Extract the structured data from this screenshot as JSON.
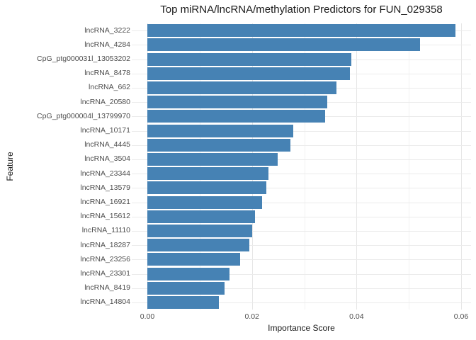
{
  "title": "Top miRNA/lncRNA/methylation Predictors for FUN_029358",
  "chart_data": {
    "type": "bar",
    "orientation": "horizontal",
    "title": "Top miRNA/lncRNA/methylation Predictors for FUN_029358",
    "xlabel": "Importance Score",
    "ylabel": "Feature",
    "xlim": [
      0,
      0.0648
    ],
    "x_ticks": [
      0.0,
      0.02,
      0.04,
      0.06
    ],
    "x_tick_labels": [
      "0.00",
      "0.02",
      "0.04",
      "0.06"
    ],
    "x_minor_ticks": [
      0.01,
      0.03,
      0.05
    ],
    "grid": true,
    "legend": false,
    "bar_color": "#4682B4",
    "categories": [
      "lncRNA_3222",
      "lncRNA_4284",
      "CpG_ptg000031l_13053202",
      "lncRNA_8478",
      "lncRNA_662",
      "lncRNA_20580",
      "CpG_ptg000004l_13799970",
      "lncRNA_10171",
      "lncRNA_4445",
      "lncRNA_3504",
      "lncRNA_23344",
      "lncRNA_13579",
      "lncRNA_16921",
      "lncRNA_15612",
      "lncRNA_11110",
      "lncRNA_18287",
      "lncRNA_23256",
      "lncRNA_23301",
      "lncRNA_8419",
      "lncRNA_14804"
    ],
    "values": [
      0.0589,
      0.0521,
      0.039,
      0.0387,
      0.0362,
      0.0344,
      0.034,
      0.0279,
      0.0274,
      0.0249,
      0.0232,
      0.0228,
      0.0219,
      0.0206,
      0.02,
      0.0195,
      0.0178,
      0.0157,
      0.0148,
      0.0137
    ]
  },
  "colors": {
    "bar": "#4682B4",
    "grid_major": "#e6e6e6",
    "grid_minor": "#f2f2f2",
    "axis_text": "#4d4d4d",
    "title_text": "#1a1a1a",
    "background": "#ffffff"
  }
}
